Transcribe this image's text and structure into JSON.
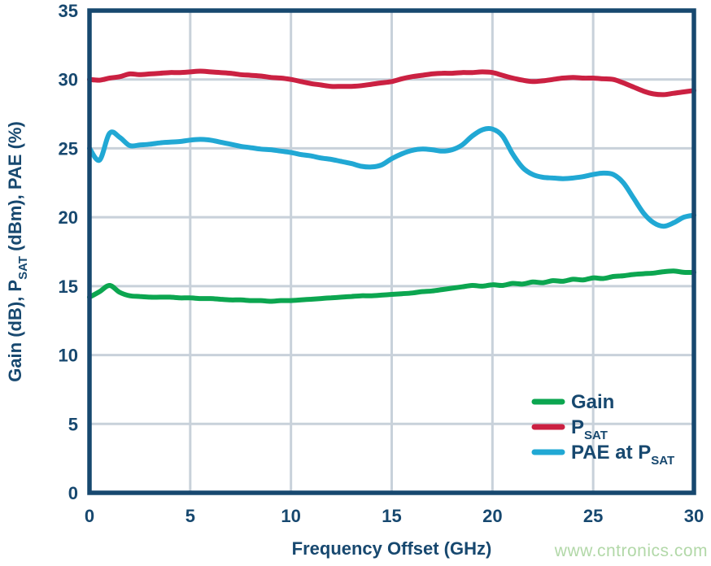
{
  "page": {
    "background": "#ffffff"
  },
  "watermark": {
    "text": "www.cntronics.com",
    "color": "#b2d8a8"
  },
  "chart_data": {
    "type": "line",
    "title": "",
    "xlabel": "Frequency Offset (GHz)",
    "ylabel": "Gain (dB), P_SAT (dBm), PAE (%)",
    "ylabel_parts": [
      {
        "t": "Gain (dB), P"
      },
      {
        "t": "SAT",
        "sub": true
      },
      {
        "t": " (dBm), PAE (%)"
      }
    ],
    "xlim": [
      0,
      30
    ],
    "ylim": [
      0,
      35
    ],
    "x_ticks": [
      0,
      5,
      10,
      15,
      20,
      25,
      30
    ],
    "y_ticks": [
      0,
      5,
      10,
      15,
      20,
      25,
      30,
      35
    ],
    "grid": true,
    "legend_position": "lower right",
    "colors": {
      "axis": "#17486f",
      "text": "#17486f",
      "grid": "#c8d1da"
    },
    "x": [
      0,
      0.5,
      1,
      1.5,
      2,
      2.5,
      3,
      3.5,
      4,
      4.5,
      5,
      5.5,
      6,
      6.5,
      7,
      7.5,
      8,
      8.5,
      9,
      9.5,
      10,
      10.5,
      11,
      11.5,
      12,
      12.5,
      13,
      13.5,
      14,
      14.5,
      15,
      15.5,
      16,
      16.5,
      17,
      17.5,
      18,
      18.5,
      19,
      19.5,
      20,
      20.5,
      21,
      21.5,
      22,
      22.5,
      23,
      23.5,
      24,
      24.5,
      25,
      25.5,
      26,
      26.5,
      27,
      27.5,
      28,
      28.5,
      29,
      29.5,
      30
    ],
    "series": [
      {
        "name": "Gain",
        "name_parts": [
          {
            "t": "Gain"
          }
        ],
        "color": "#0ca650",
        "values": [
          14.2,
          14.6,
          15.05,
          14.55,
          14.3,
          14.25,
          14.2,
          14.2,
          14.2,
          14.15,
          14.15,
          14.1,
          14.1,
          14.05,
          14.0,
          14.0,
          13.95,
          13.95,
          13.9,
          13.95,
          13.95,
          14.0,
          14.05,
          14.1,
          14.15,
          14.2,
          14.25,
          14.3,
          14.3,
          14.35,
          14.4,
          14.45,
          14.5,
          14.6,
          14.65,
          14.75,
          14.85,
          14.95,
          15.05,
          15.0,
          15.1,
          15.05,
          15.2,
          15.15,
          15.3,
          15.25,
          15.4,
          15.35,
          15.5,
          15.45,
          15.6,
          15.55,
          15.7,
          15.75,
          15.85,
          15.9,
          15.95,
          16.05,
          16.1,
          16.0,
          16.0
        ]
      },
      {
        "name": "PSAT",
        "name_parts": [
          {
            "t": "P"
          },
          {
            "t": "SAT",
            "sub": true
          }
        ],
        "color": "#cb2142",
        "values": [
          30.0,
          29.95,
          30.1,
          30.2,
          30.4,
          30.35,
          30.4,
          30.45,
          30.5,
          30.5,
          30.55,
          30.6,
          30.55,
          30.5,
          30.45,
          30.35,
          30.3,
          30.25,
          30.15,
          30.1,
          30.0,
          29.85,
          29.7,
          29.6,
          29.5,
          29.5,
          29.5,
          29.55,
          29.65,
          29.75,
          29.85,
          30.05,
          30.2,
          30.3,
          30.4,
          30.45,
          30.45,
          30.5,
          30.5,
          30.55,
          30.5,
          30.3,
          30.1,
          29.95,
          29.85,
          29.9,
          30.0,
          30.1,
          30.15,
          30.1,
          30.1,
          30.05,
          30.0,
          29.75,
          29.45,
          29.15,
          28.95,
          28.9,
          29.0,
          29.1,
          29.2
        ]
      },
      {
        "name": "PAE at PSAT",
        "name_parts": [
          {
            "t": "PAE at P"
          },
          {
            "t": "SAT",
            "sub": true
          }
        ],
        "color": "#21a8d4",
        "values": [
          25.0,
          24.15,
          26.1,
          25.8,
          25.2,
          25.25,
          25.3,
          25.4,
          25.45,
          25.5,
          25.6,
          25.65,
          25.6,
          25.45,
          25.3,
          25.15,
          25.05,
          24.95,
          24.9,
          24.8,
          24.7,
          24.55,
          24.45,
          24.3,
          24.2,
          24.05,
          23.9,
          23.7,
          23.65,
          23.8,
          24.25,
          24.6,
          24.85,
          24.95,
          24.9,
          24.8,
          24.9,
          25.25,
          25.9,
          26.35,
          26.4,
          25.9,
          24.6,
          23.6,
          23.1,
          22.9,
          22.85,
          22.8,
          22.85,
          22.95,
          23.1,
          23.2,
          23.1,
          22.5,
          21.4,
          20.3,
          19.6,
          19.35,
          19.6,
          20.0,
          20.15
        ]
      }
    ]
  }
}
